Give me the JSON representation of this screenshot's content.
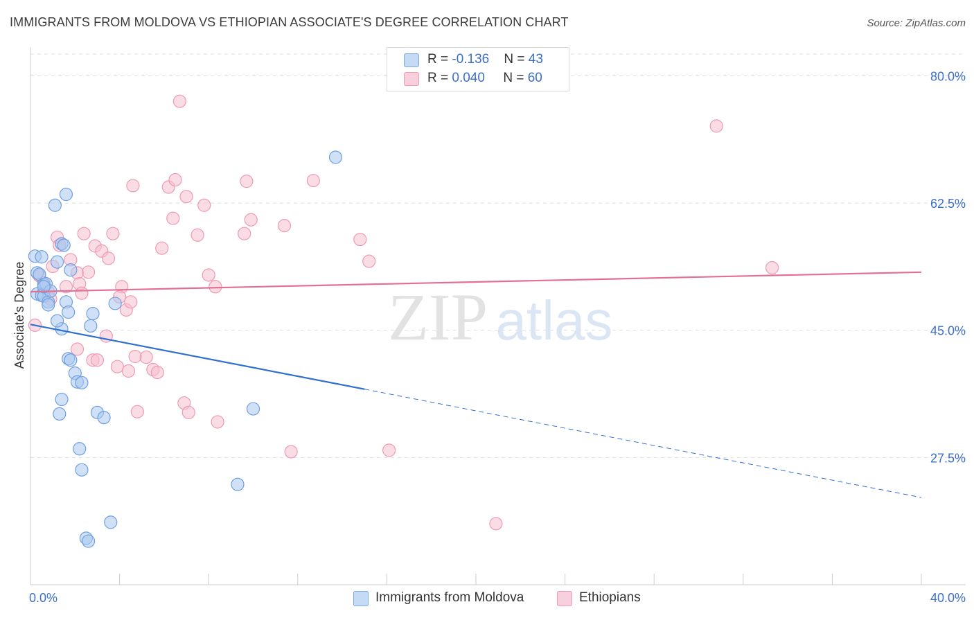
{
  "header": {
    "title": "IMMIGRANTS FROM MOLDOVA VS ETHIOPIAN ASSOCIATE'S DEGREE CORRELATION CHART",
    "source": "Source: ZipAtlas.com"
  },
  "watermark": {
    "zip": "ZIP",
    "atlas": "atlas"
  },
  "legend": {
    "rows": [
      {
        "r_label": "R = ",
        "r_value": "-0.136",
        "n_label": "N = ",
        "n_value": "43"
      },
      {
        "r_label": "R = ",
        "r_value": "0.040",
        "n_label": "N = ",
        "n_value": "60"
      }
    ]
  },
  "colors": {
    "moldova_fill": "#a9c8f0",
    "moldova_stroke": "#6f9fe0",
    "moldova_line": "#2f6fce",
    "ethiopian_fill": "#f6bfd0",
    "ethiopian_stroke": "#ee9ab4",
    "ethiopian_line": "#e26f95",
    "axis_label": "#3b6fc9",
    "grid": "#dddddd"
  },
  "chart_data": {
    "type": "scatter",
    "title": "IMMIGRANTS FROM MOLDOVA VS ETHIOPIAN ASSOCIATE'S DEGREE CORRELATION CHART",
    "xlabel": "",
    "ylabel": "Associate's Degree",
    "xlim": [
      0,
      40
    ],
    "ylim": [
      10,
      83
    ],
    "x_tick_labels": [
      "0.0%",
      "40.0%"
    ],
    "y_ticks": [
      27.5,
      45.0,
      62.5,
      80.0
    ],
    "y_tick_labels": [
      "27.5%",
      "45.0%",
      "62.5%",
      "80.0%"
    ],
    "grid": "horizontal dashed",
    "legend_placement": "bottom",
    "series": [
      {
        "name": "Immigrants from Moldova",
        "color": "#a9c8f0",
        "points": [
          [
            0.2,
            55.2
          ],
          [
            0.5,
            55.1
          ],
          [
            0.3,
            52.9
          ],
          [
            0.4,
            52.7
          ],
          [
            0.6,
            51.3
          ],
          [
            0.7,
            51.4
          ],
          [
            0.3,
            50.0
          ],
          [
            0.5,
            49.8
          ],
          [
            0.6,
            49.7
          ],
          [
            0.8,
            48.9
          ],
          [
            1.2,
            54.4
          ],
          [
            1.4,
            56.9
          ],
          [
            1.5,
            56.7
          ],
          [
            1.8,
            53.3
          ],
          [
            1.6,
            63.7
          ],
          [
            1.1,
            62.2
          ],
          [
            1.6,
            48.9
          ],
          [
            1.7,
            47.5
          ],
          [
            1.4,
            45.2
          ],
          [
            1.7,
            41.1
          ],
          [
            1.8,
            40.9
          ],
          [
            2.0,
            39.1
          ],
          [
            2.1,
            37.9
          ],
          [
            2.3,
            37.8
          ],
          [
            1.4,
            35.5
          ],
          [
            1.3,
            33.5
          ],
          [
            2.8,
            47.3
          ],
          [
            2.7,
            45.6
          ],
          [
            3.0,
            33.7
          ],
          [
            3.3,
            33.0
          ],
          [
            3.8,
            48.7
          ],
          [
            2.2,
            28.7
          ],
          [
            2.3,
            25.8
          ],
          [
            9.3,
            23.8
          ],
          [
            2.5,
            16.4
          ],
          [
            2.6,
            16.0
          ],
          [
            3.6,
            18.6
          ],
          [
            10.0,
            34.2
          ],
          [
            13.7,
            68.8
          ],
          [
            0.8,
            48.5
          ],
          [
            0.9,
            50.4
          ],
          [
            1.2,
            46.3
          ],
          [
            0.6,
            51.0
          ]
        ]
      },
      {
        "name": "Ethiopians",
        "color": "#f6bfd0",
        "points": [
          [
            0.2,
            45.7
          ],
          [
            0.4,
            52.5
          ],
          [
            0.6,
            51.5
          ],
          [
            0.8,
            50.3
          ],
          [
            1.0,
            53.8
          ],
          [
            1.2,
            57.8
          ],
          [
            1.3,
            56.7
          ],
          [
            1.6,
            51.0
          ],
          [
            1.8,
            54.7
          ],
          [
            2.1,
            52.9
          ],
          [
            2.2,
            51.4
          ],
          [
            2.3,
            50.1
          ],
          [
            2.4,
            58.3
          ],
          [
            2.6,
            53.0
          ],
          [
            2.1,
            42.4
          ],
          [
            2.8,
            40.9
          ],
          [
            3.0,
            40.9
          ],
          [
            2.9,
            56.6
          ],
          [
            3.2,
            55.9
          ],
          [
            3.5,
            54.9
          ],
          [
            3.7,
            58.3
          ],
          [
            4.1,
            51.0
          ],
          [
            4.0,
            49.6
          ],
          [
            4.3,
            47.8
          ],
          [
            4.5,
            48.9
          ],
          [
            3.4,
            44.2
          ],
          [
            3.9,
            40.0
          ],
          [
            4.4,
            39.4
          ],
          [
            4.7,
            41.4
          ],
          [
            5.2,
            41.3
          ],
          [
            5.5,
            39.6
          ],
          [
            5.7,
            39.2
          ],
          [
            4.8,
            33.8
          ],
          [
            5.9,
            56.3
          ],
          [
            4.6,
            64.9
          ],
          [
            6.2,
            64.7
          ],
          [
            6.5,
            65.7
          ],
          [
            7.0,
            63.4
          ],
          [
            6.4,
            60.4
          ],
          [
            7.5,
            58.1
          ],
          [
            7.8,
            62.2
          ],
          [
            8.0,
            52.6
          ],
          [
            8.3,
            51.0
          ],
          [
            9.6,
            58.3
          ],
          [
            9.7,
            65.5
          ],
          [
            9.9,
            60.2
          ],
          [
            11.4,
            59.4
          ],
          [
            12.7,
            65.6
          ],
          [
            14.8,
            57.5
          ],
          [
            15.2,
            54.5
          ],
          [
            6.7,
            76.5
          ],
          [
            6.9,
            35.0
          ],
          [
            7.1,
            33.7
          ],
          [
            8.4,
            32.4
          ],
          [
            11.7,
            28.3
          ],
          [
            16.1,
            28.5
          ],
          [
            20.9,
            18.4
          ],
          [
            30.8,
            73.1
          ],
          [
            33.3,
            53.6
          ],
          [
            0.9,
            49.3
          ]
        ]
      }
    ],
    "trend_lines": [
      {
        "series": "Immigrants from Moldova",
        "solid": [
          [
            0,
            45.8
          ],
          [
            15,
            36.9
          ]
        ],
        "dashed": [
          [
            15,
            36.9
          ],
          [
            40,
            22.0
          ]
        ]
      },
      {
        "series": "Ethiopians",
        "solid": [
          [
            0,
            50.3
          ],
          [
            40,
            53.0
          ]
        ]
      }
    ]
  },
  "bottom_legend": {
    "items": [
      {
        "label": "Immigrants from Moldova"
      },
      {
        "label": "Ethiopians"
      }
    ]
  }
}
